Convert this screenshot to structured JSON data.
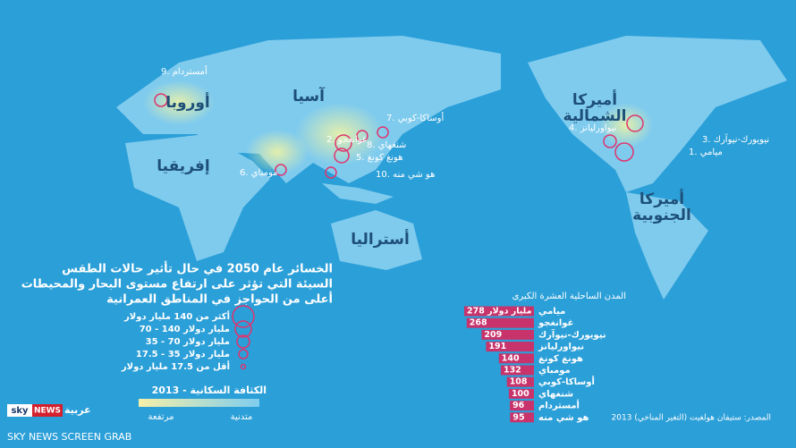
{
  "map": {
    "continents": [
      {
        "lines": [
          "آسيا"
        ]
      },
      {
        "lines": [
          "أوروبا"
        ]
      },
      {
        "lines": [
          "إفريقيا"
        ]
      },
      {
        "lines": [
          "أستراليا"
        ]
      },
      {
        "lines": [
          "أميركا",
          "الشمالية"
        ]
      },
      {
        "lines": [
          "أميركا",
          "الجنوبية"
        ]
      }
    ],
    "cities": [
      "9. أمستردام",
      "7. أوساكا-كوبي",
      "2. غوانغجو",
      "8. شنغهاي",
      "5. هونغ كونغ",
      "10. هو شي منه",
      "6. مومباي",
      "4. نيواورليانز",
      "3. نيويورك-نيوآرك",
      "1. ميامي"
    ]
  },
  "legend": {
    "title_lines": [
      "الخسائر عام 2050 في حال تأثير حالات الطقس",
      "السيئة التي تؤثر على ارتفاع مستوى البحار والمحيطات",
      "أعلى من الحواجز في المناطق العمرانية"
    ],
    "entries": [
      "أكثر من 140 مليار دولار",
      "70 - 140 مليار دولار",
      "35 - 70 مليار دولار",
      "17.5 - 35 مليار دولار",
      "أقل من 17.5 مليار دولار"
    ]
  },
  "density": {
    "title": "الكثافة السكانية - 2013",
    "high": "مرتفعة",
    "low": "متدنية"
  },
  "chart_data": {
    "type": "bar",
    "orientation": "horizontal",
    "title": "المدن الساحلية العشرة الكبرى",
    "categories": [
      "ميامي",
      "غوانغجو",
      "نيويورك-نيوآرك",
      "نيواورليانز",
      "هونغ كونغ",
      "مومباي",
      "أوساكا-كوبي",
      "شنغهاي",
      "أمستردام",
      "هو شي منه"
    ],
    "values": [
      278,
      268,
      209,
      191,
      140,
      132,
      108,
      100,
      96,
      95
    ],
    "value_labels": [
      "278 مليار دولار",
      "268",
      "209",
      "191",
      "140",
      "132",
      "108",
      "100",
      "96",
      "95"
    ],
    "color": "#c8336b"
  },
  "source": "المصدر: ستيفان هولغيت (التغير المناخي) 2013",
  "logo": {
    "sky": "sky",
    "news": "NEWS",
    "arabic": "عربية"
  },
  "watermark": "SKY NEWS SCREEN GRAB"
}
